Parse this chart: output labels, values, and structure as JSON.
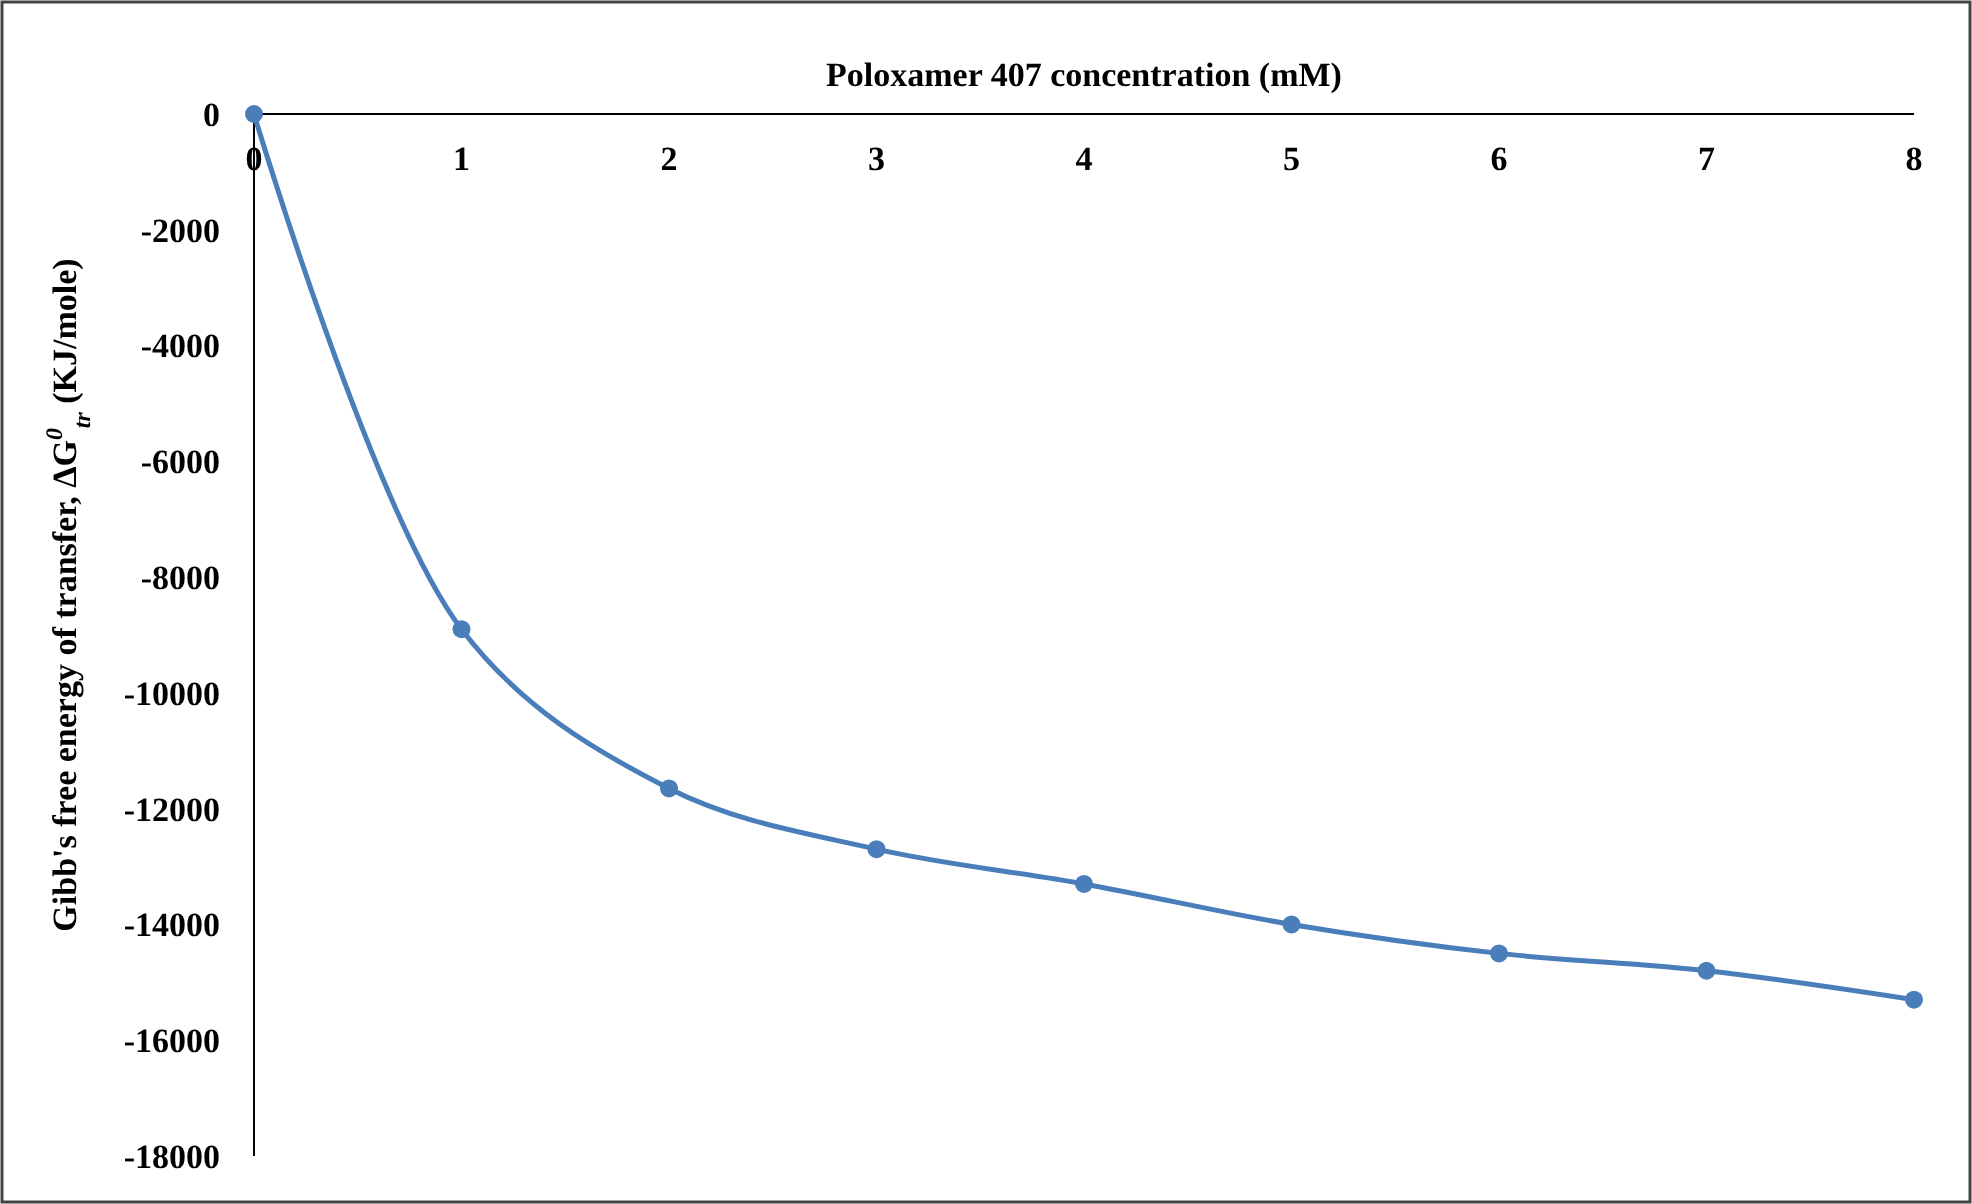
{
  "chart_data": {
    "type": "line",
    "xlabel": "Poloxamer 407 concentration (mM)",
    "ylabel": "Gibb's free energy of transfer, ΔG$^{0}$$_{tr}$  (KJ/mole)",
    "x": [
      0,
      1,
      2,
      3,
      4,
      5,
      6,
      7,
      8
    ],
    "series": [
      {
        "color": "#4a7ebb",
        "values": [
          0,
          -8900,
          -11650,
          -12700,
          -13300,
          -14000,
          -14500,
          -14800,
          -15300
        ]
      }
    ],
    "xlim": [
      0,
      8
    ],
    "xticks": [
      0,
      1,
      2,
      3,
      4,
      5,
      6,
      7,
      8
    ],
    "ylim": [
      -18000,
      0
    ],
    "yticks": [
      0,
      -2000,
      -4000,
      -6000,
      -8000,
      -10000,
      -12000,
      -14000,
      -16000,
      -18000
    ],
    "marker": "circle",
    "line_style": "solid"
  }
}
